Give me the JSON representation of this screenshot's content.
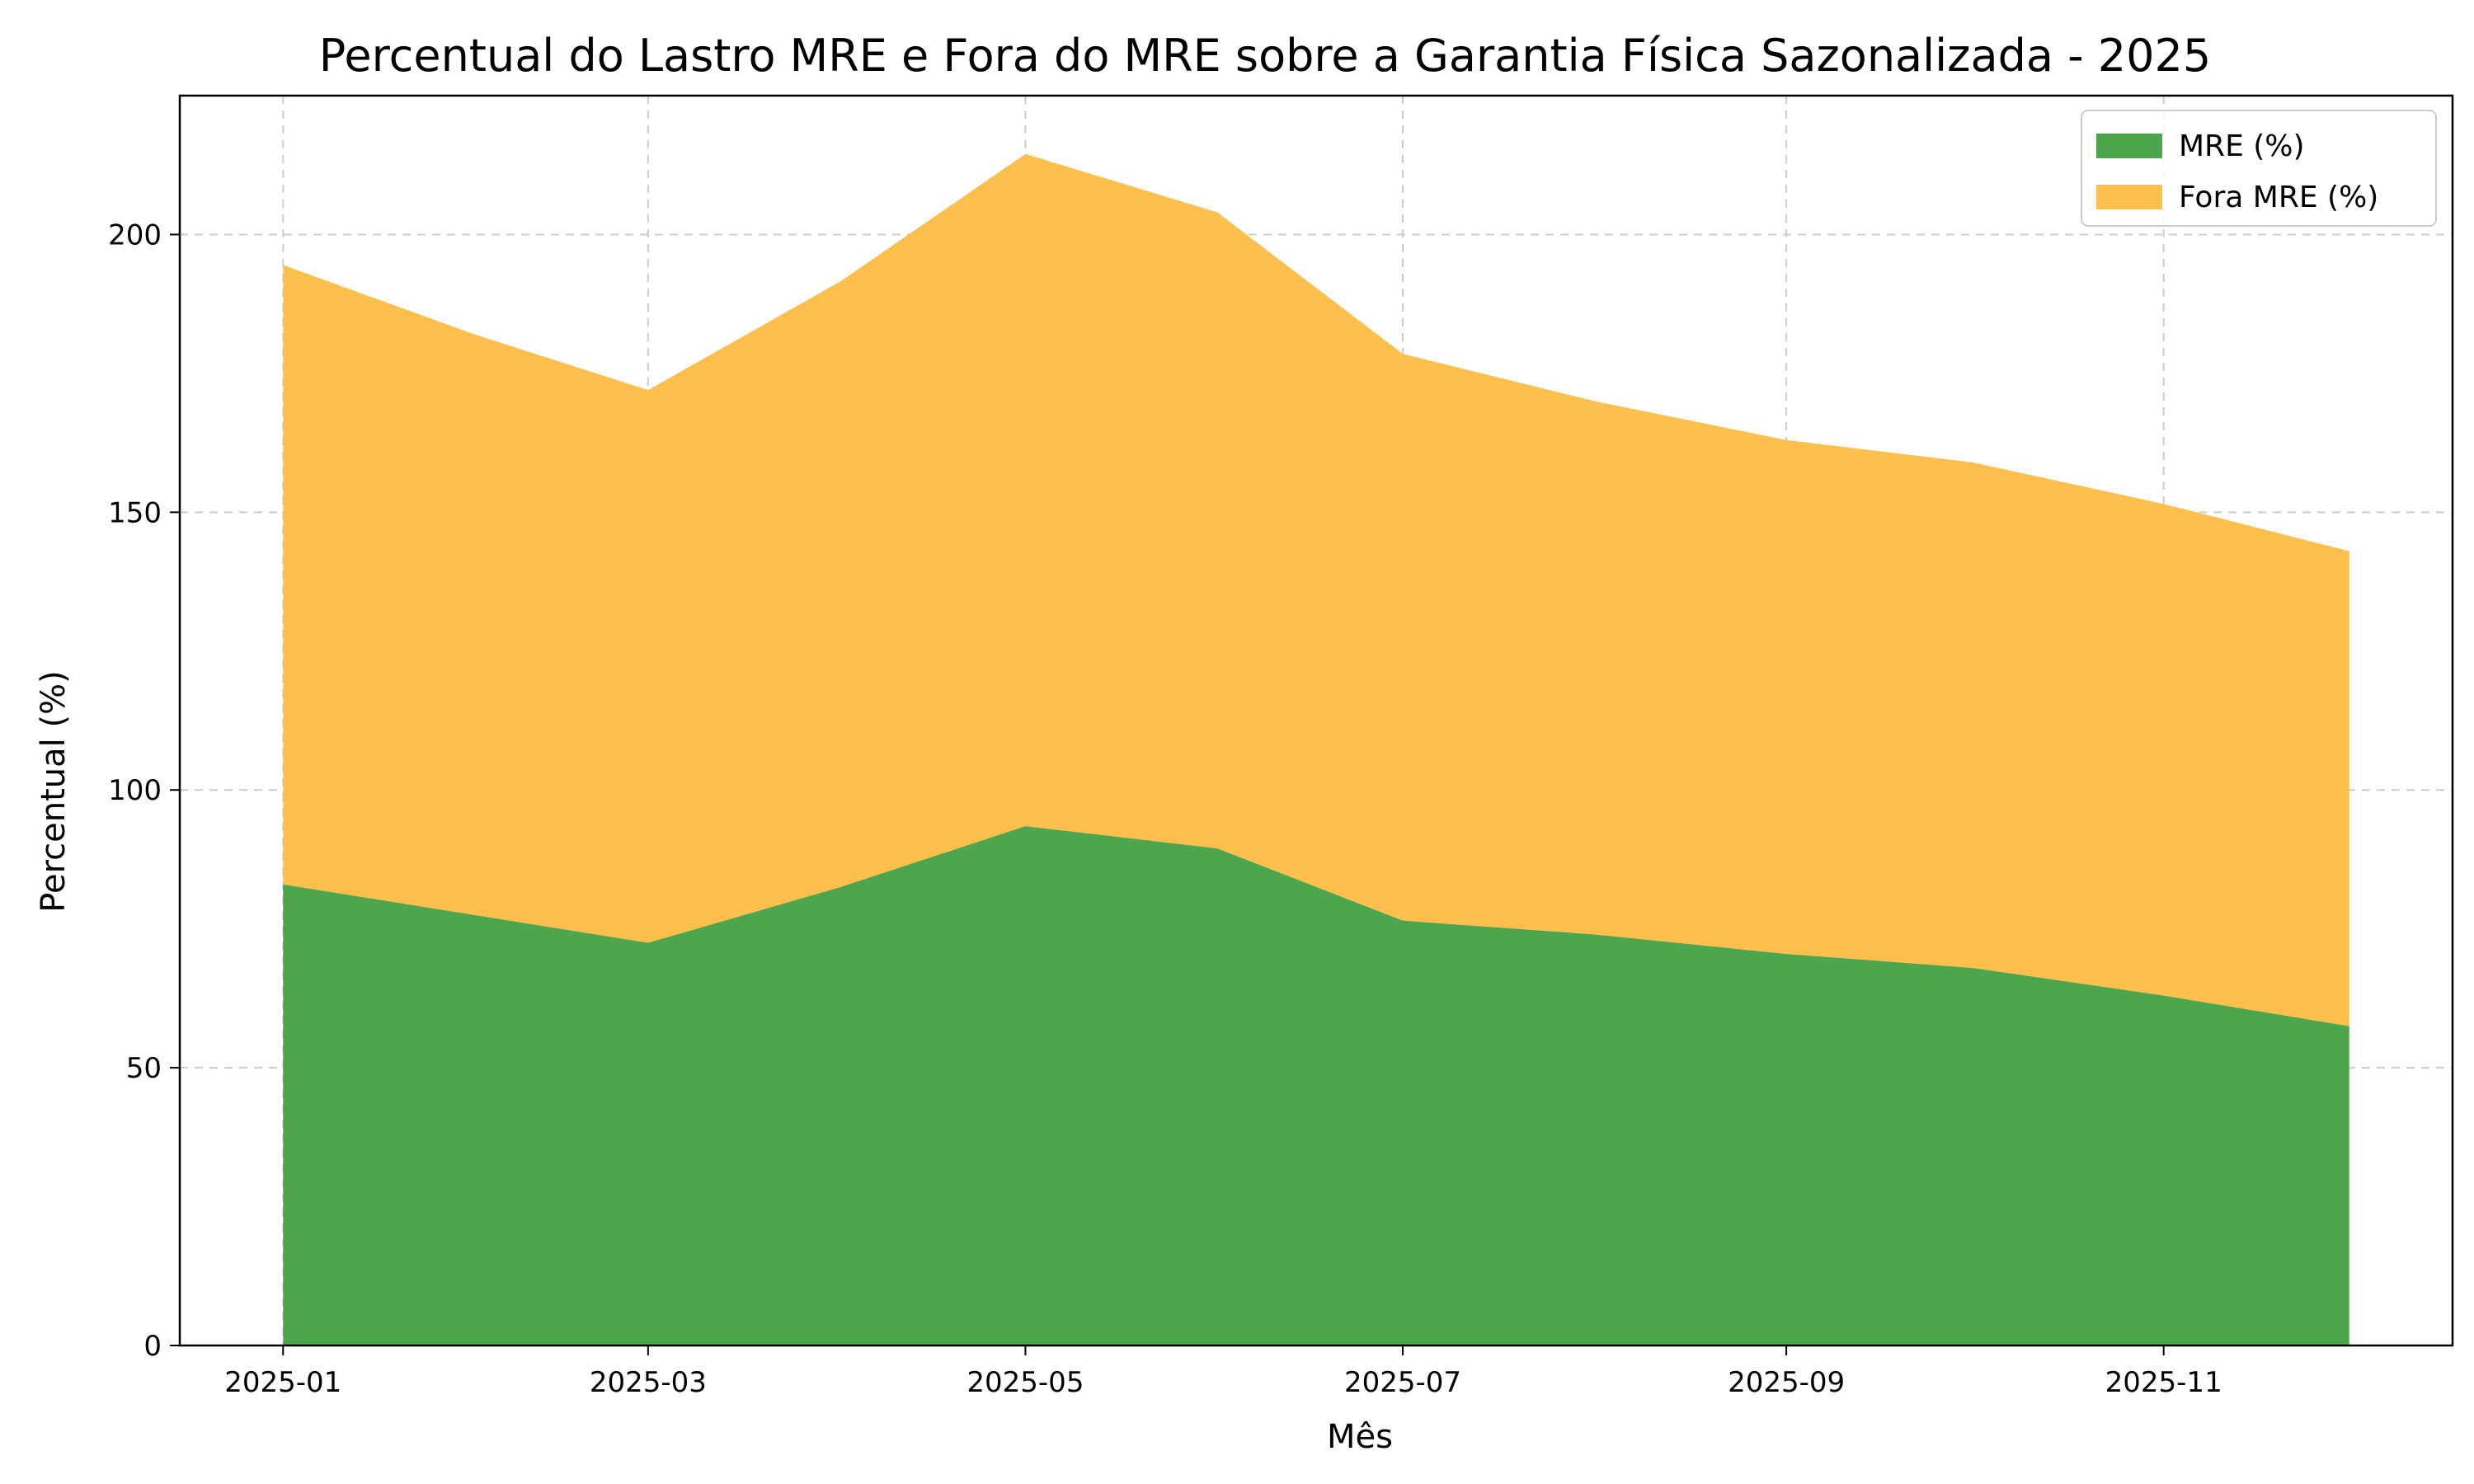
{
  "chart_data": {
    "type": "area",
    "stacked": true,
    "title": "Percentual do Lastro MRE e Fora do MRE sobre a Garantia Física Sazonalizada - 2025",
    "xlabel": "Mês",
    "ylabel": "Percentual (%)",
    "x": [
      "2025-01",
      "2025-02",
      "2025-03",
      "2025-04",
      "2025-05",
      "2025-06",
      "2025-07",
      "2025-08",
      "2025-09",
      "2025-10",
      "2025-11",
      "2025-12"
    ],
    "xticks": [
      "2025-01",
      "2025-03",
      "2025-05",
      "2025-07",
      "2025-09",
      "2025-11"
    ],
    "yticks": [
      0,
      50,
      100,
      150,
      200
    ],
    "ylim": [
      0,
      225
    ],
    "grid": true,
    "legend_position": "top-right",
    "series": [
      {
        "name": "MRE (%)",
        "color": "#4da64d",
        "values": [
          83,
          77.5,
          72.5,
          82.5,
          93.5,
          89.5,
          76.5,
          74,
          70.5,
          68,
          63,
          57.5
        ]
      },
      {
        "name": "Fora MRE (%)",
        "color": "#ffbf4d",
        "values": [
          111.5,
          104.5,
          99.5,
          109,
          121,
          114.5,
          102,
          96,
          92.5,
          91,
          88.5,
          85.5
        ]
      }
    ]
  }
}
